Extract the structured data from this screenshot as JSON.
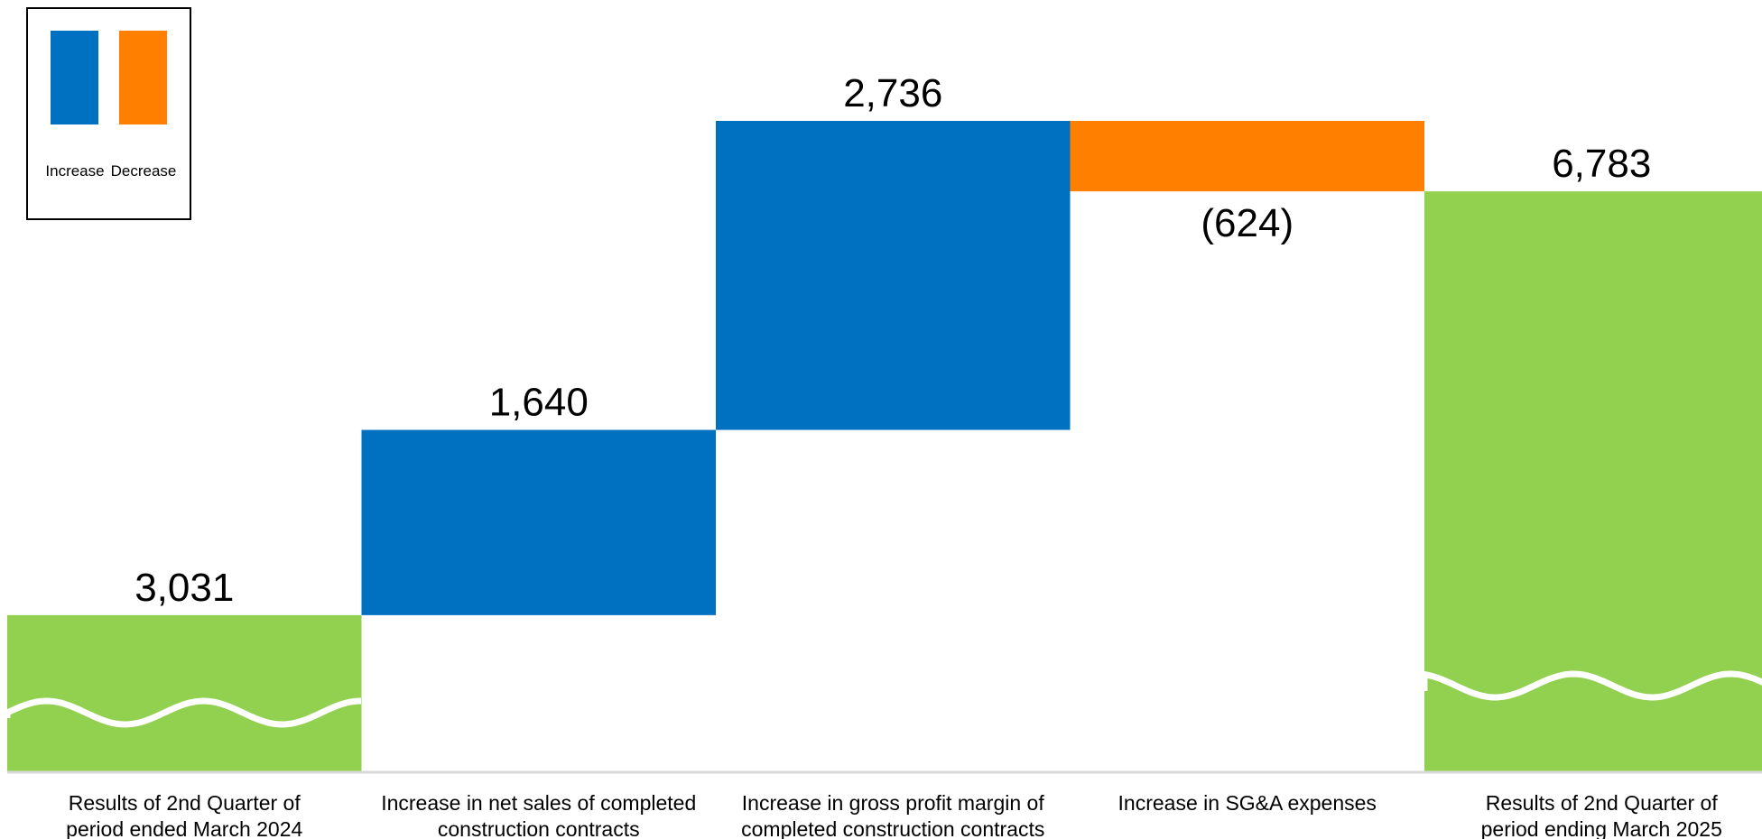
{
  "chart_data": {
    "type": "waterfall",
    "title": "",
    "xlabel": "",
    "ylabel": "",
    "grid": false,
    "legend": {
      "placement": "top-left",
      "entries": [
        {
          "label": "Increase",
          "color": "#0070C0"
        },
        {
          "label": "Decrease",
          "color": "#FF7F00"
        }
      ]
    },
    "colors": {
      "total": "#92D050",
      "increase": "#0070C0",
      "decrease": "#FF7F00",
      "baseline": "#d9d9d9"
    },
    "axis_break": true,
    "categories": [
      "Results of 2nd Quarter of period ended March 2024",
      "Increase in net sales of completed construction contracts",
      "Increase in gross profit margin of completed construction contracts",
      "Increase in SG&A expenses",
      "Results of 2nd Quarter of period ending March 2025"
    ],
    "category_lines": [
      [
        "Results of 2nd Quarter of",
        "period ended March 2024"
      ],
      [
        "Increase in net sales of completed",
        "construction contracts"
      ],
      [
        "Increase in gross profit margin of",
        "completed construction contracts"
      ],
      [
        "Increase in SG&A expenses"
      ],
      [
        "Results of 2nd Quarter of",
        "period ending March 2025"
      ]
    ],
    "values": [
      3031,
      1640,
      2736,
      -624,
      6783
    ],
    "kinds": [
      "total",
      "increase",
      "increase",
      "decrease",
      "total"
    ],
    "labels": [
      "3,031",
      "1,640",
      "2,736",
      "(624)",
      "6,783"
    ],
    "ylim": [
      1640,
      7407
    ]
  }
}
